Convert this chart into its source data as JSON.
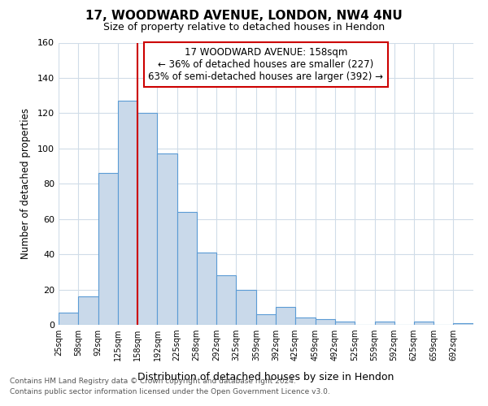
{
  "title_line1": "17, WOODWARD AVENUE, LONDON, NW4 4NU",
  "title_line2": "Size of property relative to detached houses in Hendon",
  "xlabel": "Distribution of detached houses by size in Hendon",
  "ylabel": "Number of detached properties",
  "bins": [
    25,
    58,
    92,
    125,
    158,
    192,
    225,
    258,
    292,
    325,
    359,
    392,
    425,
    459,
    492,
    525,
    559,
    592,
    625,
    659,
    692,
    726
  ],
  "counts": [
    7,
    16,
    86,
    127,
    120,
    97,
    64,
    41,
    28,
    20,
    6,
    10,
    4,
    3,
    2,
    0,
    2,
    0,
    2,
    0,
    1
  ],
  "bar_color": "#c9d9ea",
  "bar_edge_color": "#5b9bd5",
  "vline_x": 158,
  "vline_color": "#cc0000",
  "annotation_text": "17 WOODWARD AVENUE: 158sqm\n← 36% of detached houses are smaller (227)\n63% of semi-detached houses are larger (392) →",
  "annotation_box_color": "#cc0000",
  "annotation_fontsize": 8.5,
  "bg_color": "#ffffff",
  "plot_bg_color": "#ffffff",
  "grid_color": "#d0dce8",
  "footer_line1": "Contains HM Land Registry data © Crown copyright and database right 2024.",
  "footer_line2": "Contains public sector information licensed under the Open Government Licence v3.0.",
  "ylim": [
    0,
    160
  ],
  "yticks": [
    0,
    20,
    40,
    60,
    80,
    100,
    120,
    140,
    160
  ],
  "tick_labels": [
    "25sqm",
    "58sqm",
    "92sqm",
    "125sqm",
    "158sqm",
    "192sqm",
    "225sqm",
    "258sqm",
    "292sqm",
    "325sqm",
    "359sqm",
    "392sqm",
    "425sqm",
    "459sqm",
    "492sqm",
    "525sqm",
    "559sqm",
    "592sqm",
    "625sqm",
    "659sqm",
    "692sqm"
  ]
}
